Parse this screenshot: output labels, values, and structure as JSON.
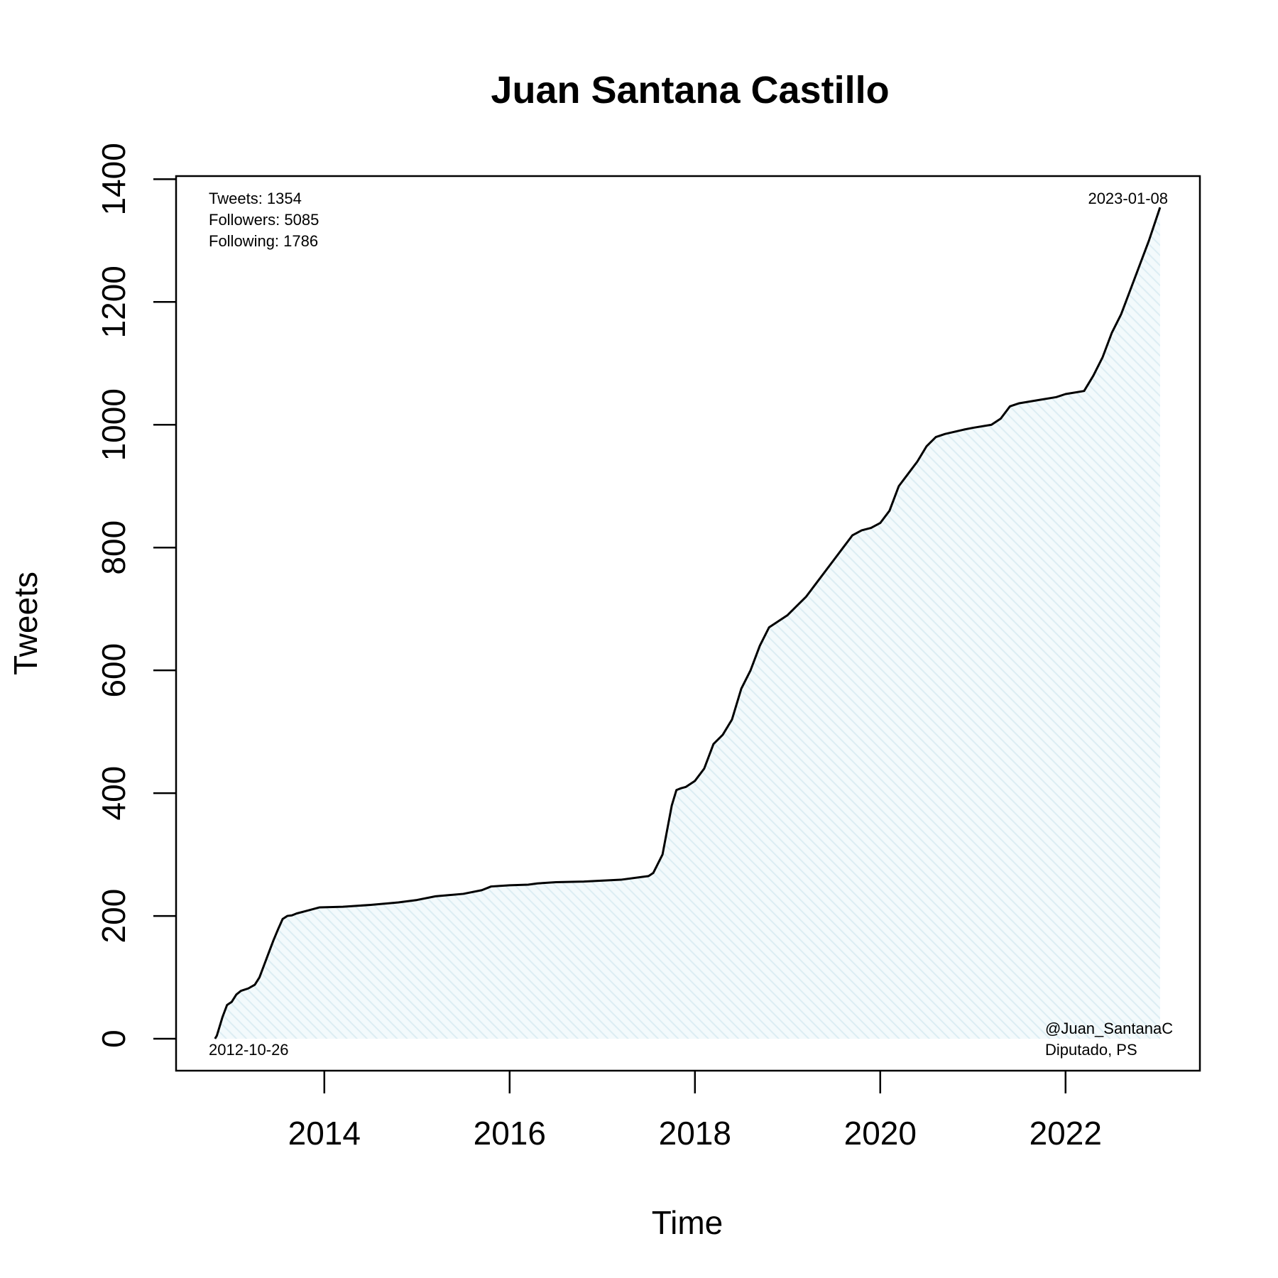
{
  "chart_data": {
    "type": "area",
    "title": "Juan Santana Castillo",
    "xlabel": "Time",
    "ylabel": "Tweets",
    "xlim": [
      2012.4,
      2023.45
    ],
    "ylim": [
      -52,
      1405
    ],
    "x_ticks": [
      2014,
      2016,
      2018,
      2020,
      2022
    ],
    "x_tick_labels": [
      "2014",
      "2016",
      "2018",
      "2020",
      "2022"
    ],
    "y_ticks": [
      0,
      200,
      400,
      600,
      800,
      1000,
      1200,
      1400
    ],
    "y_tick_labels": [
      "0",
      "200",
      "400",
      "600",
      "800",
      "1000",
      "1200",
      "1400"
    ],
    "fill_color": "#e6f3f7",
    "line_color": "#000000",
    "grid": false,
    "stats": {
      "tweets": "Tweets: 1354",
      "followers": "Followers: 5085",
      "following": "Following: 1786"
    },
    "start_date_label": "2012-10-26",
    "end_date_label": "2023-01-08",
    "handle": "@Juan_SantanaC",
    "role": "Diputado, PS",
    "series": [
      {
        "x": [
          2012.82,
          2012.84,
          2012.9,
          2012.95,
          2013.0,
          2013.05,
          2013.1,
          2013.18,
          2013.25,
          2013.3,
          2013.35,
          2013.4,
          2013.45,
          2013.5,
          2013.55,
          2013.6,
          2013.65,
          2013.7,
          2013.8,
          2013.9,
          2013.95,
          2014.2,
          2014.5,
          2014.8,
          2015.0,
          2015.2,
          2015.5,
          2015.7,
          2015.8,
          2016.0,
          2016.2,
          2016.3,
          2016.5,
          2016.8,
          2017.2,
          2017.5,
          2017.55,
          2017.6,
          2017.65,
          2017.7,
          2017.75,
          2017.8,
          2017.85,
          2017.9,
          2018.0,
          2018.1,
          2018.2,
          2018.3,
          2018.4,
          2018.5,
          2018.6,
          2018.7,
          2018.8,
          2018.9,
          2019.0,
          2019.1,
          2019.2,
          2019.3,
          2019.5,
          2019.6,
          2019.7,
          2019.8,
          2019.9,
          2020.0,
          2020.1,
          2020.2,
          2020.3,
          2020.4,
          2020.5,
          2020.6,
          2020.7,
          2020.9,
          2021.0,
          2021.2,
          2021.3,
          2021.4,
          2021.5,
          2021.7,
          2021.9,
          2022.0,
          2022.2,
          2022.3,
          2022.4,
          2022.5,
          2022.6,
          2022.7,
          2022.8,
          2022.9,
          2023.02
        ],
        "y": [
          0,
          5,
          35,
          55,
          60,
          72,
          78,
          82,
          88,
          100,
          120,
          140,
          160,
          178,
          195,
          200,
          201,
          204,
          208,
          212,
          214,
          215,
          218,
          222,
          226,
          232,
          236,
          242,
          248,
          250,
          251,
          253,
          255,
          256,
          259,
          265,
          270,
          285,
          300,
          340,
          380,
          405,
          408,
          410,
          420,
          440,
          480,
          495,
          520,
          570,
          600,
          640,
          670,
          680,
          690,
          705,
          720,
          740,
          780,
          800,
          820,
          828,
          832,
          840,
          860,
          900,
          920,
          940,
          965,
          980,
          985,
          992,
          995,
          1000,
          1010,
          1030,
          1035,
          1040,
          1045,
          1050,
          1055,
          1080,
          1110,
          1150,
          1180,
          1220,
          1260,
          1300,
          1354
        ]
      }
    ]
  }
}
